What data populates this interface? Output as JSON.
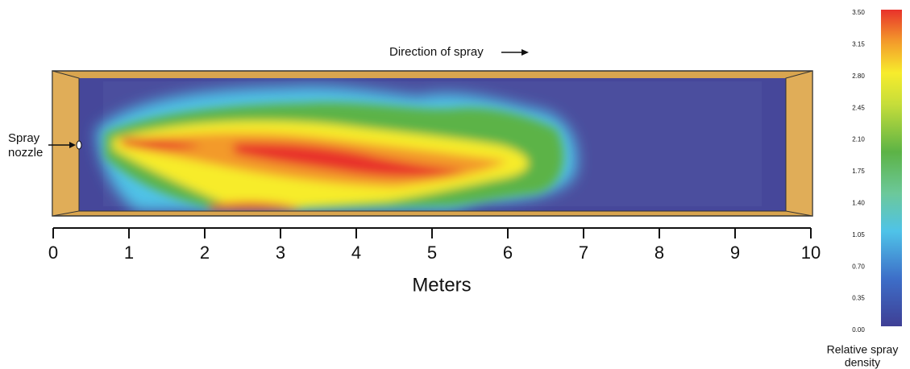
{
  "annotations": {
    "direction": "Direction of spray",
    "nozzle": [
      "Spray",
      "nozzle"
    ]
  },
  "axis": {
    "label": "Meters",
    "ticks": [
      "0",
      "1",
      "2",
      "3",
      "4",
      "5",
      "6",
      "7",
      "8",
      "9",
      "10"
    ]
  },
  "colorbar": {
    "label": [
      "Relative spray",
      "density"
    ],
    "ticks": [
      "3.50",
      "3.15",
      "2.80",
      "2.45",
      "2.10",
      "1.75",
      "1.40",
      "1.05",
      "0.70",
      "0.35",
      "0.00"
    ]
  }
}
